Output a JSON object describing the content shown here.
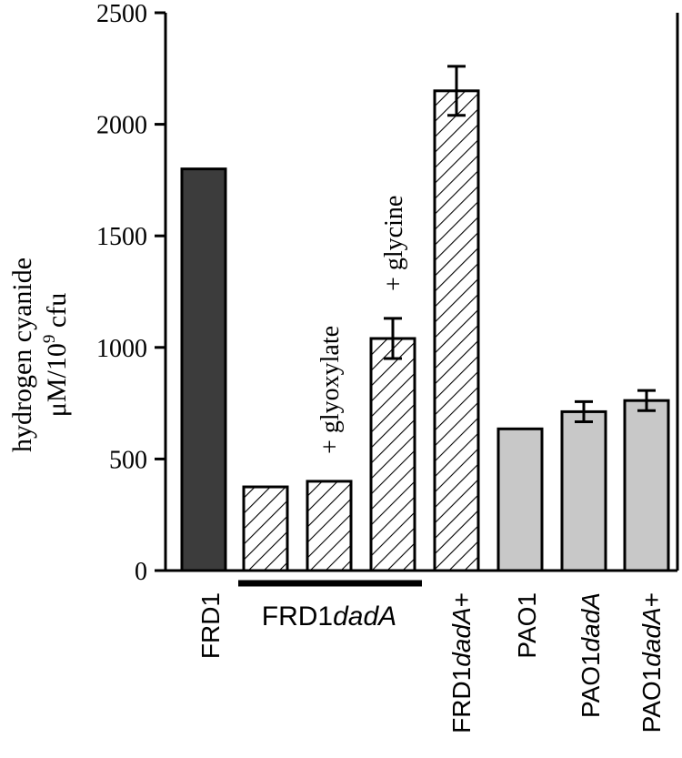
{
  "chart_data": {
    "type": "bar",
    "ylabel_line1": "hydrogen cyanide",
    "ylabel_line2_prefix": "μM/10",
    "ylabel_line2_sup": "9",
    "ylabel_line2_suffix": " cfu",
    "ylim": [
      0,
      2500
    ],
    "yticks": [
      0,
      500,
      1000,
      1500,
      2000,
      2500
    ],
    "bars": [
      {
        "value": 1800,
        "error": null,
        "fill": "dark"
      },
      {
        "value": 375,
        "error": null,
        "fill": "hatch"
      },
      {
        "value": 400,
        "error": null,
        "fill": "hatch",
        "annotation": "+ glyoxylate"
      },
      {
        "value": 1040,
        "error": 90,
        "fill": "hatch",
        "annotation": "+ glycine"
      },
      {
        "value": 2150,
        "error": 110,
        "fill": "hatch"
      },
      {
        "value": 635,
        "error": null,
        "fill": "light"
      },
      {
        "value": 712,
        "error": 45,
        "fill": "light"
      },
      {
        "value": 762,
        "error": 45,
        "fill": "light"
      }
    ],
    "group_labels": {
      "frd1": "FRD1",
      "frd1dadA_prefix": "FRD1",
      "frd1dadA_italic": "dadA",
      "frd1dadAplus_prefix": "FRD1",
      "frd1dadAplus_italic": "dadA",
      "frd1dadAplus_suffix": "+",
      "pao1": "PAO1",
      "pao1dadA_prefix": "PAO1",
      "pao1dadA_italic": "dadA",
      "pao1dadAplus_prefix": "PAO1",
      "pao1dadAplus_italic": "dadA",
      "pao1dadAplus_suffix": "+"
    },
    "colors": {
      "dark": "#3c3c3c",
      "light": "#c8c8c8",
      "hatch_bg": "#ffffff",
      "ink": "#000000"
    }
  }
}
